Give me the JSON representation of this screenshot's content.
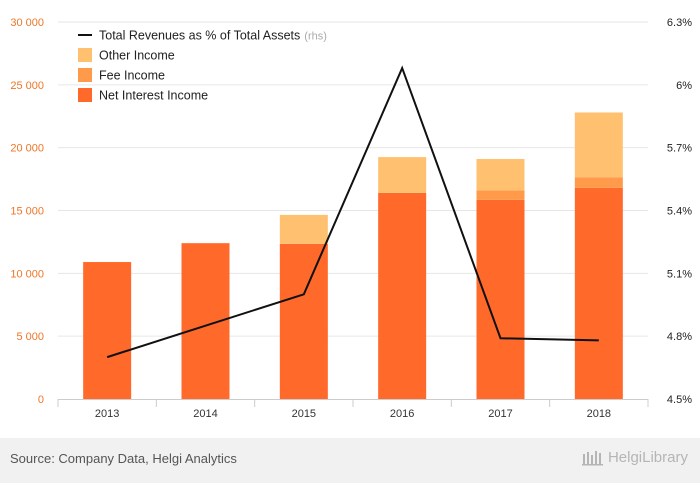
{
  "chart_data": {
    "type": "bar",
    "stacked": true,
    "categories": [
      "2013",
      "2014",
      "2015",
      "2016",
      "2017",
      "2018"
    ],
    "series": [
      {
        "name": "Net Interest Income",
        "values": [
          10900,
          12400,
          12350,
          16400,
          15850,
          16800
        ],
        "color": "#ff6a2b"
      },
      {
        "name": "Fee Income",
        "values": [
          0,
          0,
          0,
          0,
          750,
          850
        ],
        "color": "#ff9a4a"
      },
      {
        "name": "Other Income",
        "values": [
          0,
          0,
          2300,
          2850,
          2500,
          5150
        ],
        "color": "#ffc170"
      }
    ],
    "line_series": {
      "name": "Total Revenues as % of Total Assets",
      "axis": "right",
      "values": [
        4.7,
        4.85,
        5.0,
        6.08,
        4.79,
        4.78
      ],
      "color": "#111111"
    },
    "yleft": {
      "ylim": [
        0,
        30000
      ],
      "ticks": [
        "0",
        "5 000",
        "10 000",
        "15 000",
        "20 000",
        "25 000",
        "30 000"
      ]
    },
    "yright": {
      "ylim": [
        4.5,
        6.3
      ],
      "ticks": [
        "4.5%",
        "4.8%",
        "5.1%",
        "5.4%",
        "5.7%",
        "6%",
        "6.3%"
      ]
    },
    "legend": [
      {
        "label": "Total Revenues as % of Total Assets",
        "suffix": "(rhs)",
        "kind": "line"
      },
      {
        "label": "Other Income",
        "suffix": "",
        "kind": "box"
      },
      {
        "label": "Fee Income",
        "suffix": "",
        "kind": "box"
      },
      {
        "label": "Net Interest Income",
        "suffix": "",
        "kind": "box"
      }
    ],
    "legend_position": "top-left",
    "grid": true
  },
  "footer": {
    "source": "Source: Company Data, Helgi Analytics",
    "brand": "HelgiLibrary"
  }
}
